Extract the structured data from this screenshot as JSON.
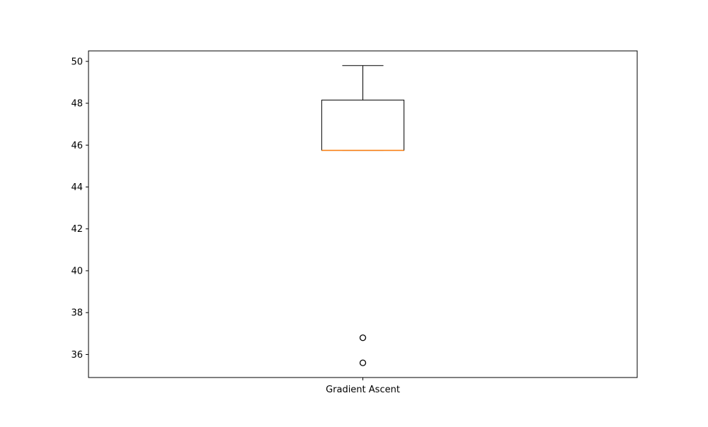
{
  "chart_data": {
    "type": "box",
    "title": "",
    "xlabel": "",
    "ylabel": "",
    "categories": [
      "Gradient Ascent"
    ],
    "ylim": [
      34.9,
      50.5
    ],
    "yticks": [
      36,
      38,
      40,
      42,
      44,
      46,
      48,
      50
    ],
    "grid": false,
    "boxes": [
      {
        "category": "Gradient Ascent",
        "whisker_low": 45.75,
        "q1": 45.75,
        "median": 45.75,
        "q3": 48.15,
        "whisker_high": 49.8,
        "outliers": [
          36.8,
          35.6
        ]
      }
    ],
    "colors": {
      "box": "#000000",
      "median": "#ff7f0e",
      "outlier": "#000000"
    }
  }
}
